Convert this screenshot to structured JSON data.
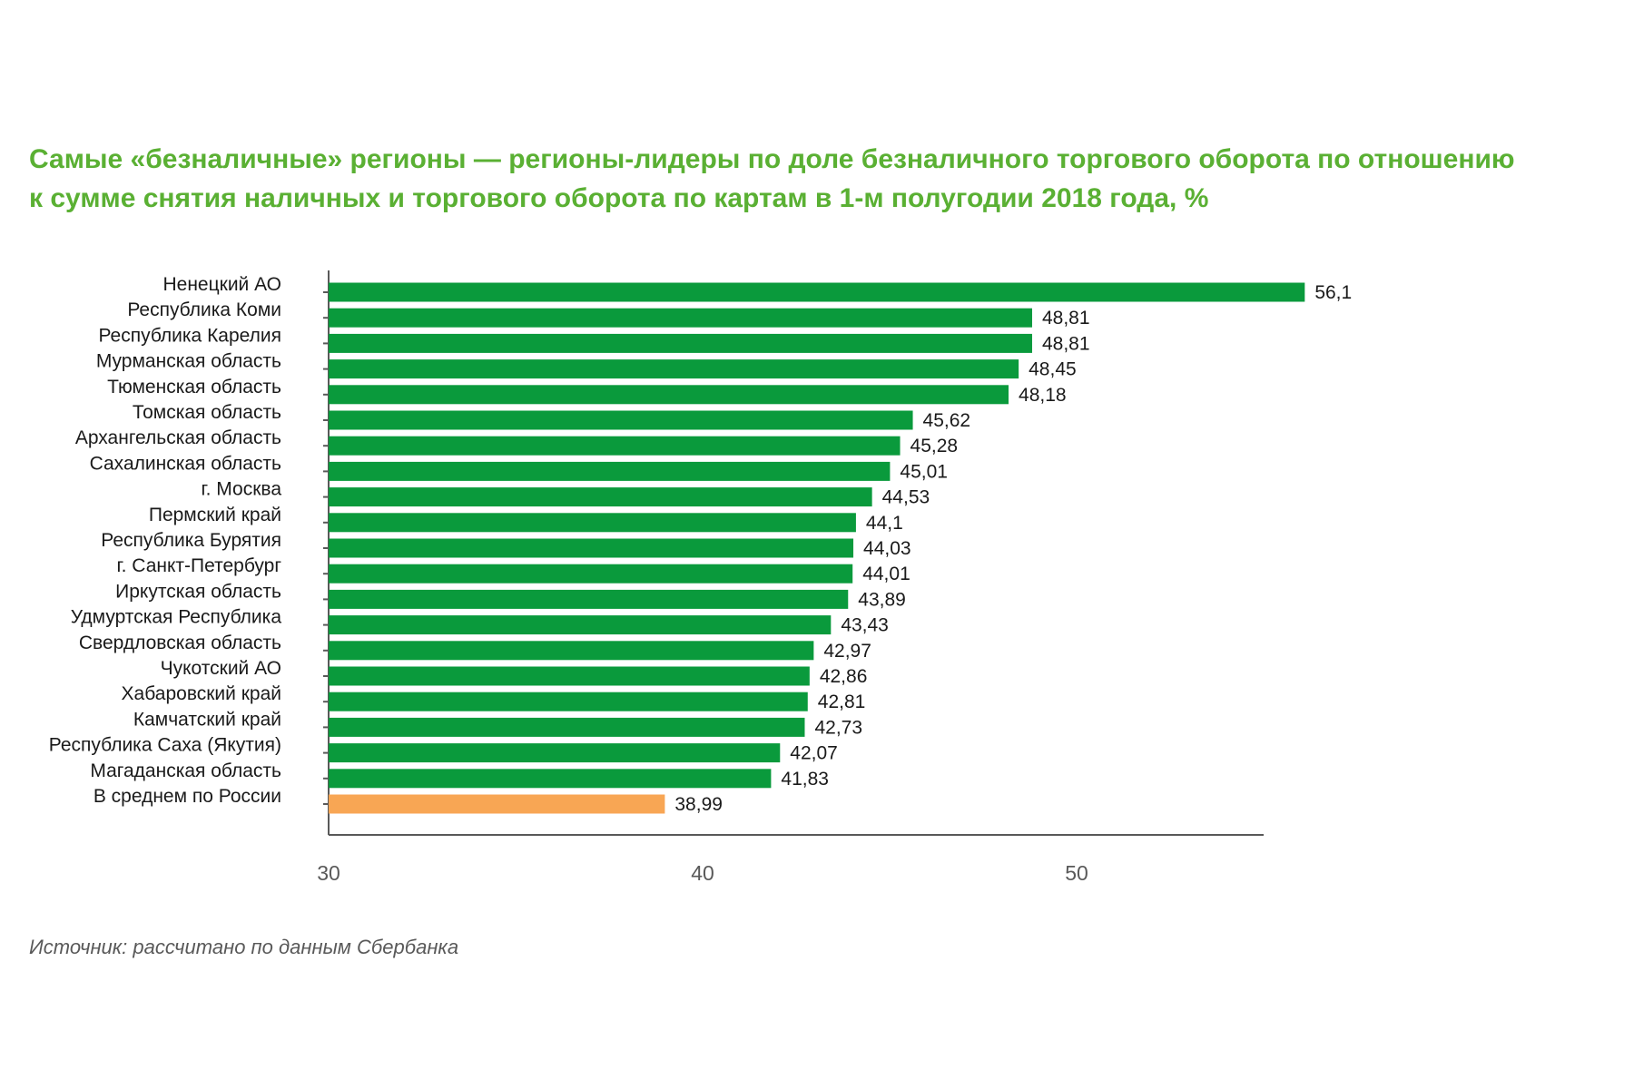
{
  "title_lines": [
    "Самые «безналичные» регионы — регионы-лидеры по доле безналичного торгового оборота по отношению",
    "к сумме снятия наличных и торгового оборота по картам в 1-м полугодии 2018 года, %"
  ],
  "source": "Источник: рассчитано по данным Сбербанка",
  "colors": {
    "title": "#5ab033",
    "bar": "#0a9a3c",
    "bar_highlight": "#f8a654",
    "axis": "#595959",
    "text": "#1a1a1a",
    "tick_text": "#595959"
  },
  "chart_data": {
    "type": "bar",
    "orientation": "horizontal",
    "title": "Самые «безналичные» регионы — регионы-лидеры по доле безналичного торгового оборота по отношению к сумме снятия наличных и торгового оборота по картам в 1-м полугодии 2018 года, %",
    "xlabel": "",
    "ylabel": "",
    "xlim": [
      30,
      55
    ],
    "x_ticks": [
      30,
      40,
      50
    ],
    "grid": false,
    "legend": "none",
    "categories": [
      "Ненецкий АО",
      "Республика Коми",
      "Республика Карелия",
      "Мурманская область",
      "Тюменская область",
      "Томская область",
      "Архангельская область",
      "Сахалинская область",
      "г. Москва",
      "Пермский край",
      "Республика Бурятия",
      "г. Санкт-Петербург",
      "Иркутская область",
      "Удмуртская Республика",
      "Свердловская область",
      "Чукотский АО",
      "Хабаровский край",
      "Камчатский край",
      "Республика Саха (Якутия)",
      "Магаданская область",
      "В среднем по России"
    ],
    "values": [
      56.1,
      48.81,
      48.81,
      48.45,
      48.18,
      45.62,
      45.28,
      45.01,
      44.53,
      44.1,
      44.03,
      44.01,
      43.89,
      43.43,
      42.97,
      42.86,
      42.81,
      42.73,
      42.07,
      41.83,
      38.99
    ],
    "value_labels": [
      "56,1",
      "48,81",
      "48,81",
      "48,45",
      "48,18",
      "45,62",
      "45,28",
      "45,01",
      "44,53",
      "44,1",
      "44,03",
      "44,01",
      "43,89",
      "43,43",
      "42,97",
      "42,86",
      "42,81",
      "42,73",
      "42,07",
      "41,83",
      "38,99"
    ],
    "highlight_categories": [
      "В среднем по России"
    ]
  }
}
